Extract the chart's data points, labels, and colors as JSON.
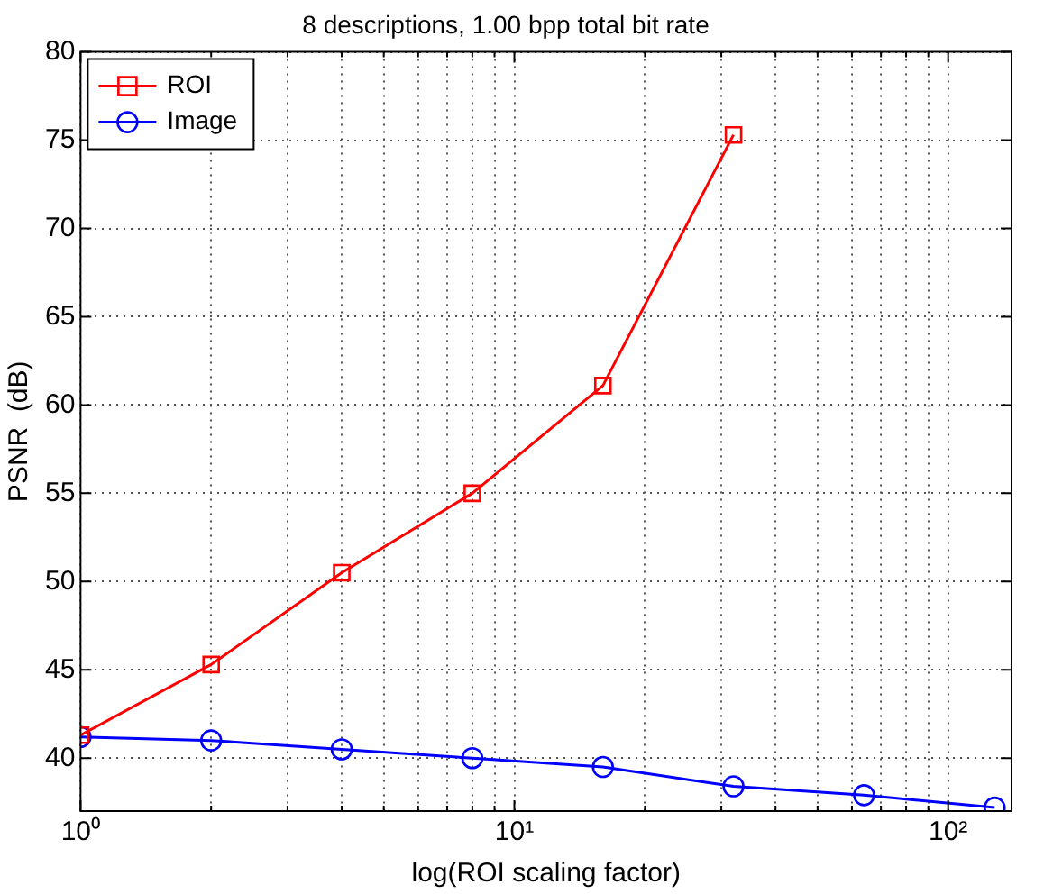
{
  "chart_data": {
    "type": "line",
    "title": "8 descriptions, 1.00 bpp total bit rate",
    "xlabel": "log(ROI scaling factor)",
    "ylabel": "PSNR  (dB)",
    "log": "x",
    "x": [
      1,
      2,
      4,
      8,
      16,
      32,
      64,
      128
    ],
    "series": [
      {
        "name": "ROI",
        "color": "#ff0000",
        "marker": "square",
        "values": [
          41.3,
          45.3,
          50.5,
          55.0,
          61.1,
          75.3,
          null,
          null
        ]
      },
      {
        "name": "Image",
        "color": "#0000ff",
        "marker": "circle",
        "values": [
          41.2,
          41.0,
          40.5,
          40.0,
          39.5,
          38.4,
          37.9,
          37.2
        ]
      }
    ],
    "xlim": [
      1,
      140
    ],
    "ylim": [
      37,
      80
    ],
    "xticks": [
      {
        "value": 1,
        "label": "10⁰"
      },
      {
        "value": 2,
        "label": null
      },
      {
        "value": 3,
        "label": null
      },
      {
        "value": 4,
        "label": null
      },
      {
        "value": 5,
        "label": null
      },
      {
        "value": 6,
        "label": null
      },
      {
        "value": 7,
        "label": null
      },
      {
        "value": 8,
        "label": null
      },
      {
        "value": 9,
        "label": null
      },
      {
        "value": 10,
        "label": "10¹"
      },
      {
        "value": 20,
        "label": null
      },
      {
        "value": 30,
        "label": null
      },
      {
        "value": 40,
        "label": null
      },
      {
        "value": 50,
        "label": null
      },
      {
        "value": 60,
        "label": null
      },
      {
        "value": 70,
        "label": null
      },
      {
        "value": 80,
        "label": null
      },
      {
        "value": 90,
        "label": null
      },
      {
        "value": 100,
        "label": "10²"
      }
    ],
    "yticks": [
      40,
      45,
      50,
      55,
      60,
      65,
      70,
      75,
      80
    ],
    "grid": true,
    "legend": "top left",
    "line_style": "solid"
  }
}
